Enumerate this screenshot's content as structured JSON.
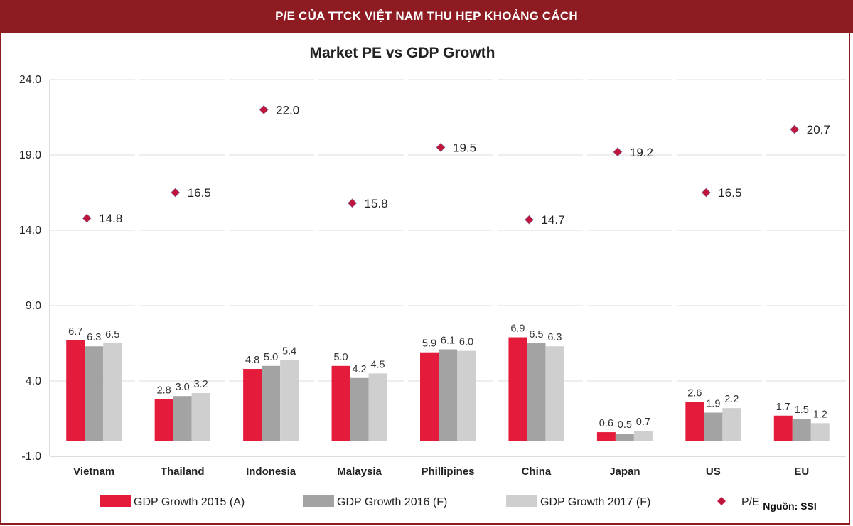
{
  "header": {
    "title": "P/E CỦA TTCK VIỆT NAM THU HẸP KHOẢNG CÁCH"
  },
  "source": "Nguồn: SSI",
  "chart_data": {
    "type": "bar",
    "title": "Market PE vs GDP Growth",
    "categories": [
      "Vietnam",
      "Thailand",
      "Indonesia",
      "Malaysia",
      "Phillipines",
      "China",
      "Japan",
      "US",
      "EU"
    ],
    "series": [
      {
        "name": "GDP Growth 2015 (A)",
        "kind": "bar",
        "color": "#e41b3b",
        "values": [
          6.7,
          2.8,
          4.8,
          5.0,
          5.9,
          6.9,
          0.6,
          2.6,
          1.7
        ],
        "labels": [
          "6.7",
          "2.8",
          "4.8",
          "5.0",
          "5.9",
          "6.9",
          "0.6",
          "2.6",
          "1.7"
        ]
      },
      {
        "name": "GDP Growth 2016 (F)",
        "kind": "bar",
        "color": "#a3a3a3",
        "values": [
          6.3,
          3.0,
          5.0,
          4.2,
          6.1,
          6.5,
          0.5,
          1.9,
          1.5
        ],
        "labels": [
          "6.3",
          "3.0",
          "5.0",
          "4.2",
          "6.1",
          "6.5",
          "0.5",
          "1.9",
          "1.5"
        ]
      },
      {
        "name": "GDP Growth 2017 (F)",
        "kind": "bar",
        "color": "#cfcfcf",
        "values": [
          6.5,
          3.2,
          5.4,
          4.5,
          6.0,
          6.3,
          0.7,
          2.2,
          1.2
        ],
        "labels": [
          "6.5",
          "3.2",
          "5.4",
          "4.5",
          "6.0",
          "6.3",
          "0.7",
          "2.2",
          "1.2"
        ]
      },
      {
        "name": "P/E",
        "kind": "marker",
        "color": "#c0143c",
        "values": [
          14.8,
          16.5,
          22.0,
          15.8,
          19.5,
          14.7,
          19.2,
          16.5,
          20.7
        ],
        "labels": [
          "14.8",
          "16.5",
          "22.0",
          "15.8",
          "19.5",
          "14.7",
          "19.2",
          "16.5",
          "20.7"
        ]
      }
    ],
    "yaxis": {
      "ylim": [
        -1.0,
        24.0
      ],
      "ticks": [
        "-1.0",
        "4.0",
        "9.0",
        "14.0",
        "19.0",
        "24.0"
      ]
    },
    "grid": true,
    "legend": "bottom"
  }
}
